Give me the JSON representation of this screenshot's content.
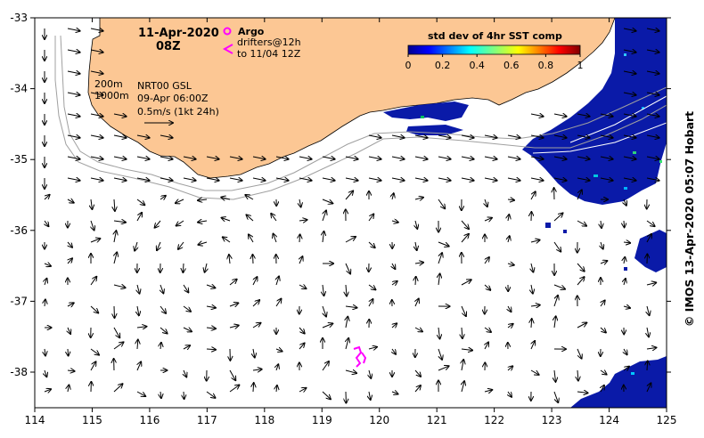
{
  "map": {
    "date": "11-Apr-2020",
    "hour": "08Z",
    "argo_label": "Argo",
    "drifters_line1": "drifters@12h",
    "drifters_line2": "to 11/04 12Z",
    "isobath_200": "200m",
    "isobath_1000": "1000m",
    "product": "NRT00 GSL",
    "product_time": "09-Apr 06:00Z",
    "scale_label": "0.5m/s (1kt 24h)",
    "colorbar_title": "std dev of 4hr SST comp",
    "colorbar_ticks": [
      "0",
      "0.2",
      "0.4",
      "0.6",
      "0.8",
      "1"
    ],
    "lon_ticks": [
      "114",
      "115",
      "116",
      "117",
      "118",
      "119",
      "120",
      "121",
      "122",
      "123",
      "124",
      "125"
    ],
    "lat_ticks": [
      "-33",
      "-34",
      "-35",
      "-36",
      "-37",
      "-38"
    ],
    "copyright": "© IMOS 13-Apr-2020 05:07 Hobart",
    "colors": {
      "land": "#fcc794",
      "argo": "#ff00ff",
      "drifter": "#ff00ff",
      "isobath": "#a0a0a0",
      "sst_dense": "#0a1aa8"
    }
  }
}
